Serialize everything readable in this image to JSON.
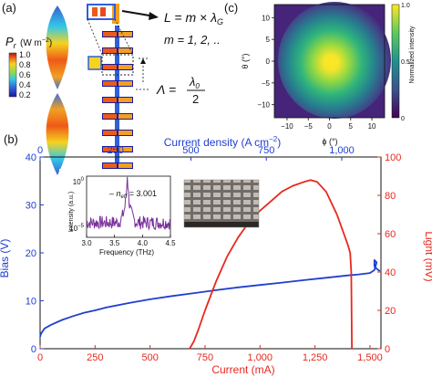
{
  "panel_a": {
    "label": "(a)",
    "pr_label": "P",
    "pr_sub": "r",
    "pr_unit": "(W m",
    "pr_unit_sup": "−2",
    "pr_unit_close": ")",
    "colorbar_ticks": [
      "1.0",
      "0.8",
      "0.6",
      "0.4",
      "0.2"
    ],
    "eq1_lhs": "L = m × λ",
    "eq1_sub": "G",
    "eq2": "m = 1, 2, ..",
    "eq3_lhs": "Λ =",
    "eq3_num": "λ",
    "eq3_num_sub": "0",
    "eq3_den": "2"
  },
  "panel_c": {
    "label": "(c)",
    "colorbar_ticks": [
      "1.0",
      "0.5",
      "0"
    ],
    "colorbar_title": "Normalized intensity",
    "x_ticks": [
      "−10",
      "−5",
      "0",
      "5",
      "10"
    ],
    "y_ticks": [
      "10",
      "5",
      "0",
      "−5",
      "−10"
    ],
    "xlabel": "ϕ (°)",
    "ylabel": "θ (°)"
  },
  "panel_b": {
    "label": "(b)"
  },
  "chart_data": {
    "type": "line",
    "title": "",
    "xlabel": "Current (mA)",
    "x_ticks": [
      "0",
      "250",
      "500",
      "750",
      "1,000",
      "1,250",
      "1,500"
    ],
    "xlim": [
      0,
      1550
    ],
    "top_xlabel": "Current density (A cm",
    "top_xlabel_sup": "−2",
    "top_xlabel_close": ")",
    "top_x_ticks": [
      "0",
      "250",
      "500",
      "750",
      "1,000"
    ],
    "top_xlim": [
      0,
      1130
    ],
    "ylabel_left": "Bias (V)",
    "ylim_left": [
      0,
      40
    ],
    "y_ticks_left": [
      "0",
      "10",
      "20",
      "30",
      "40"
    ],
    "ylabel_right": "Light (mV)",
    "ylim_right": [
      0,
      100
    ],
    "y_ticks_right": [
      "0",
      "20",
      "40",
      "60",
      "80",
      "100"
    ],
    "series": [
      {
        "axis": "left",
        "color": "#1f3fd0",
        "points": [
          [
            0,
            2.5
          ],
          [
            5,
            3.2
          ],
          [
            20,
            4.2
          ],
          [
            50,
            5.0
          ],
          [
            100,
            6.0
          ],
          [
            150,
            6.8
          ],
          [
            200,
            7.5
          ],
          [
            250,
            8.0
          ],
          [
            300,
            8.6
          ],
          [
            400,
            9.5
          ],
          [
            500,
            10.3
          ],
          [
            600,
            11.0
          ],
          [
            700,
            11.6
          ],
          [
            800,
            12.2
          ],
          [
            900,
            12.8
          ],
          [
            1000,
            13.3
          ],
          [
            1100,
            13.8
          ],
          [
            1200,
            14.3
          ],
          [
            1300,
            14.8
          ],
          [
            1400,
            15.3
          ],
          [
            1450,
            15.5
          ],
          [
            1500,
            15.8
          ],
          [
            1520,
            16.4
          ],
          [
            1530,
            18.0
          ],
          [
            1520,
            18.5
          ],
          [
            1520,
            17.2
          ],
          [
            1535,
            16.5
          ],
          [
            1545,
            16.2
          ]
        ]
      },
      {
        "axis": "right",
        "color": "#e8281e",
        "points": [
          [
            680,
            0
          ],
          [
            700,
            4
          ],
          [
            720,
            10
          ],
          [
            750,
            20
          ],
          [
            800,
            35
          ],
          [
            850,
            48
          ],
          [
            900,
            58
          ],
          [
            950,
            66
          ],
          [
            1000,
            72
          ],
          [
            1050,
            77
          ],
          [
            1100,
            82
          ],
          [
            1150,
            85
          ],
          [
            1200,
            87
          ],
          [
            1230,
            88
          ],
          [
            1260,
            87
          ],
          [
            1300,
            82
          ],
          [
            1350,
            70
          ],
          [
            1400,
            54
          ],
          [
            1410,
            50
          ],
          [
            1415,
            40
          ],
          [
            1418,
            0
          ]
        ]
      }
    ],
    "inset_spectrum": {
      "type": "line",
      "xlabel": "Frequency (THz)",
      "ylabel": "Intensity (a.u.)",
      "x_ticks": [
        "3.0",
        "3.5",
        "4.0",
        "4.5"
      ],
      "xlim": [
        3.0,
        4.5
      ],
      "y_ticks": [
        "10",
        "10"
      ],
      "y_ticks_sup": [
        "0",
        "−5"
      ],
      "y_log_range": [
        -5,
        0
      ],
      "annotation": "n",
      "annotation_sub": "eff",
      "annotation_value": " = 3.001",
      "color": "#7a2f9a",
      "peak_x": 3.73
    }
  },
  "colors": {
    "blue_axis": "#1f3fd0",
    "red_axis": "#e8281e",
    "purple": "#7a2f9a"
  }
}
